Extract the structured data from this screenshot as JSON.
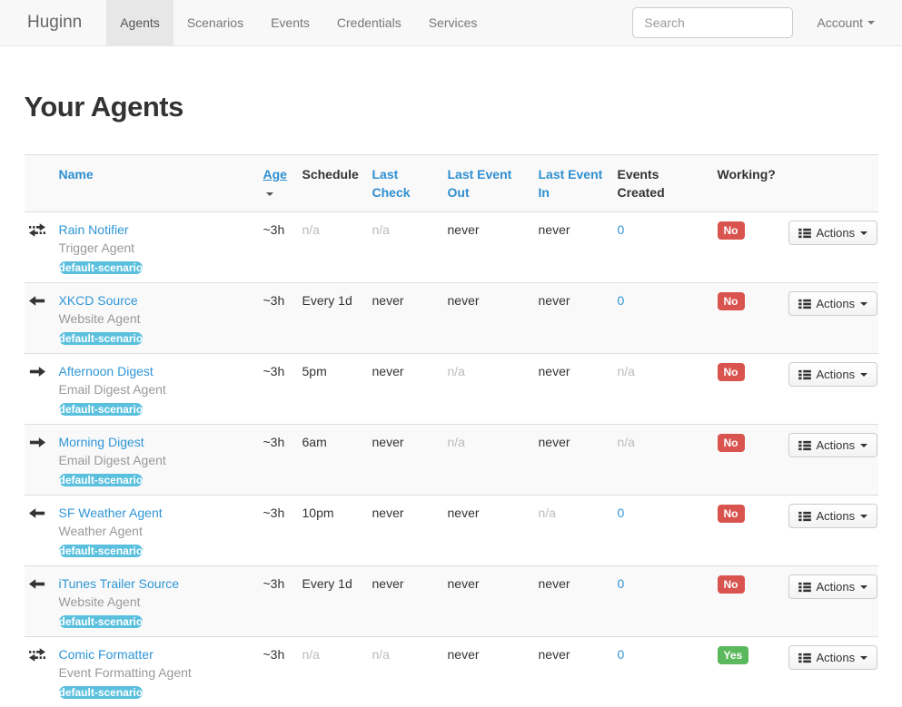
{
  "navbar": {
    "brand": "Huginn",
    "items": [
      {
        "label": "Agents",
        "active": true
      },
      {
        "label": "Scenarios",
        "active": false
      },
      {
        "label": "Events",
        "active": false
      },
      {
        "label": "Credentials",
        "active": false
      },
      {
        "label": "Services",
        "active": false
      }
    ],
    "search_placeholder": "Search",
    "account_label": "Account"
  },
  "page": {
    "title": "Your Agents"
  },
  "colors": {
    "link_blue": "#2f96d5",
    "badge_info": "#5bc0de",
    "badge_danger": "#d9534f",
    "badge_success": "#5cb85c",
    "navbar_bg": "#f8f8f8",
    "stripe_bg": "#f9f9f9"
  },
  "table": {
    "headers": {
      "name": "Name",
      "age": "Age",
      "schedule": "Schedule",
      "last_check": "Last Check",
      "last_event_out": "Last Event Out",
      "last_event_in": "Last Event In",
      "events_created": "Events Created",
      "working": "Working?"
    },
    "actions_label": "Actions",
    "rows": [
      {
        "icon": "bidirectional-arrows",
        "name": "Rain Notifier",
        "type": "Trigger Agent",
        "scenario": "default-scenario",
        "age": "~3h",
        "schedule": {
          "text": "n/a",
          "style": "muted"
        },
        "last_check": {
          "text": "n/a",
          "style": "muted"
        },
        "last_event_out": {
          "text": "never",
          "style": ""
        },
        "last_event_in": {
          "text": "never",
          "style": ""
        },
        "events_created": {
          "text": "0",
          "style": "link"
        },
        "working": {
          "text": "No",
          "style": "badge-no"
        }
      },
      {
        "icon": "arrow-left",
        "name": "XKCD Source",
        "type": "Website Agent",
        "scenario": "default-scenario",
        "age": "~3h",
        "schedule": {
          "text": "Every 1d",
          "style": ""
        },
        "last_check": {
          "text": "never",
          "style": ""
        },
        "last_event_out": {
          "text": "never",
          "style": ""
        },
        "last_event_in": {
          "text": "never",
          "style": ""
        },
        "events_created": {
          "text": "0",
          "style": "link"
        },
        "working": {
          "text": "No",
          "style": "badge-no"
        }
      },
      {
        "icon": "arrow-right",
        "name": "Afternoon Digest",
        "type": "Email Digest Agent",
        "scenario": "default-scenario",
        "age": "~3h",
        "schedule": {
          "text": "5pm",
          "style": ""
        },
        "last_check": {
          "text": "never",
          "style": ""
        },
        "last_event_out": {
          "text": "n/a",
          "style": "muted"
        },
        "last_event_in": {
          "text": "never",
          "style": ""
        },
        "events_created": {
          "text": "n/a",
          "style": "muted"
        },
        "working": {
          "text": "No",
          "style": "badge-no"
        }
      },
      {
        "icon": "arrow-right",
        "name": "Morning Digest",
        "type": "Email Digest Agent",
        "scenario": "default-scenario",
        "age": "~3h",
        "schedule": {
          "text": "6am",
          "style": ""
        },
        "last_check": {
          "text": "never",
          "style": ""
        },
        "last_event_out": {
          "text": "n/a",
          "style": "muted"
        },
        "last_event_in": {
          "text": "never",
          "style": ""
        },
        "events_created": {
          "text": "n/a",
          "style": "muted"
        },
        "working": {
          "text": "No",
          "style": "badge-no"
        }
      },
      {
        "icon": "arrow-left",
        "name": "SF Weather Agent",
        "type": "Weather Agent",
        "scenario": "default-scenario",
        "age": "~3h",
        "schedule": {
          "text": "10pm",
          "style": ""
        },
        "last_check": {
          "text": "never",
          "style": ""
        },
        "last_event_out": {
          "text": "never",
          "style": ""
        },
        "last_event_in": {
          "text": "n/a",
          "style": "muted"
        },
        "events_created": {
          "text": "0",
          "style": "link"
        },
        "working": {
          "text": "No",
          "style": "badge-no"
        }
      },
      {
        "icon": "arrow-left",
        "name": "iTunes Trailer Source",
        "type": "Website Agent",
        "scenario": "default-scenario",
        "age": "~3h",
        "schedule": {
          "text": "Every 1d",
          "style": ""
        },
        "last_check": {
          "text": "never",
          "style": ""
        },
        "last_event_out": {
          "text": "never",
          "style": ""
        },
        "last_event_in": {
          "text": "never",
          "style": ""
        },
        "events_created": {
          "text": "0",
          "style": "link"
        },
        "working": {
          "text": "No",
          "style": "badge-no"
        }
      },
      {
        "icon": "bidirectional-arrows",
        "name": "Comic Formatter",
        "type": "Event Formatting Agent",
        "scenario": "default-scenario",
        "age": "~3h",
        "schedule": {
          "text": "n/a",
          "style": "muted"
        },
        "last_check": {
          "text": "n/a",
          "style": "muted"
        },
        "last_event_out": {
          "text": "never",
          "style": ""
        },
        "last_event_in": {
          "text": "never",
          "style": ""
        },
        "events_created": {
          "text": "0",
          "style": "link"
        },
        "working": {
          "text": "Yes",
          "style": "badge-yes"
        }
      }
    ]
  }
}
